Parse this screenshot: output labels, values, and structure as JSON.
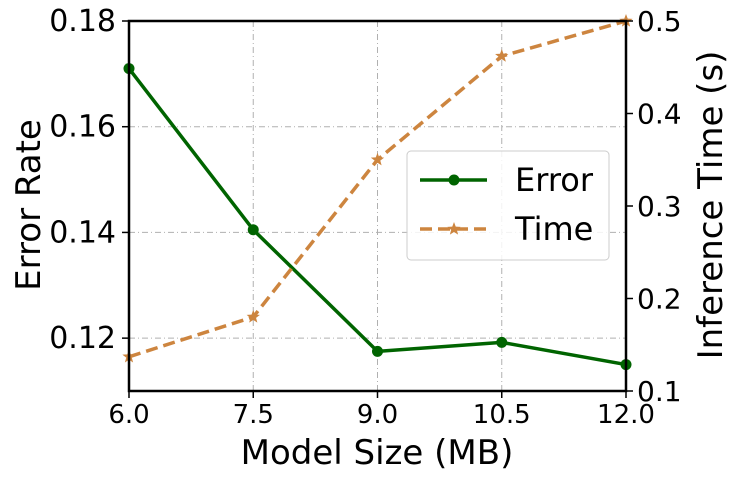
{
  "chart_data": {
    "type": "line",
    "x": [
      6.0,
      7.5,
      9.0,
      10.5,
      12.0
    ],
    "x_tick_labels": [
      "6.0",
      "7.5",
      "9.0",
      "10.5",
      "12.0"
    ],
    "xlabel": "Model Size (MB)",
    "xlim": [
      6.0,
      12.0
    ],
    "ylabel_left": "Error Rate",
    "ylim_left": [
      0.11,
      0.18
    ],
    "y_ticks_left": [
      "0.12",
      "0.14",
      "0.16",
      "0.18"
    ],
    "ylabel_right": "Inference Time (s)",
    "ylim_right": [
      0.1,
      0.5
    ],
    "y_ticks_right": [
      "0.1",
      "0.2",
      "0.3",
      "0.4",
      "0.5"
    ],
    "grid": true,
    "legend_position": "center-right",
    "series": [
      {
        "name": "Error",
        "axis": "left",
        "values": [
          0.171,
          0.1405,
          0.1175,
          0.1192,
          0.115
        ],
        "color": "#006400",
        "line_style": "solid",
        "marker": "circle"
      },
      {
        "name": "Time",
        "axis": "right",
        "values": [
          0.137,
          0.18,
          0.35,
          0.462,
          0.5
        ],
        "color": "#cd853f",
        "line_style": "dashed",
        "marker": "star"
      }
    ]
  }
}
